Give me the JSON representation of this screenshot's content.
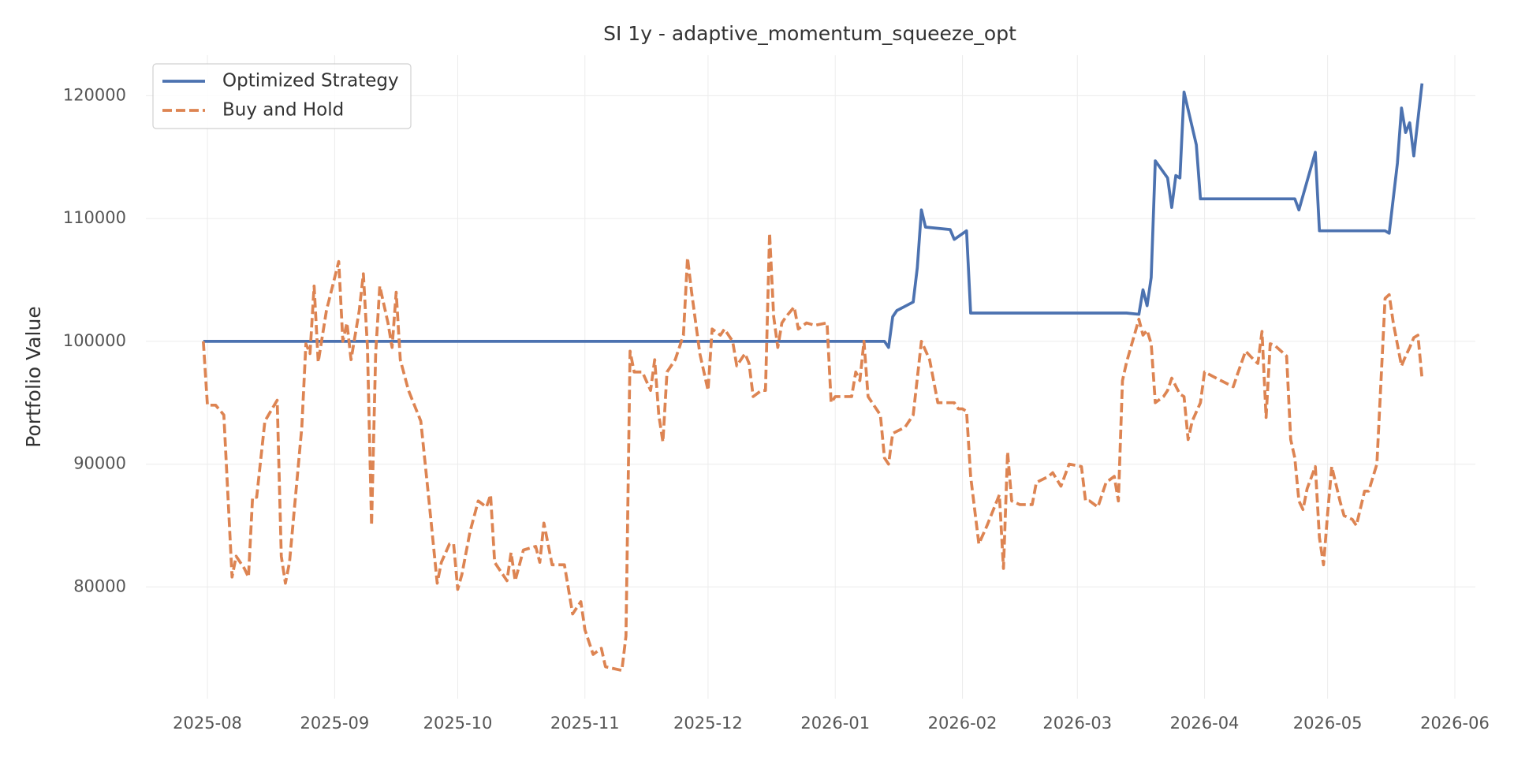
{
  "chart_data": {
    "type": "line",
    "title": "SI 1y - adaptive_momentum_squeeze_opt",
    "y_label": "Portfolio Value",
    "grid": true,
    "legend": "upper left",
    "xlim": [
      "2025-07-17",
      "2026-06-06"
    ],
    "xticks": [
      {
        "value": "2025-08-01",
        "label": "2025-08"
      },
      {
        "value": "2025-09-01",
        "label": "2025-09"
      },
      {
        "value": "2025-10-01",
        "label": "2025-10"
      },
      {
        "value": "2025-11-01",
        "label": "2025-11"
      },
      {
        "value": "2025-12-01",
        "label": "2025-12"
      },
      {
        "value": "2026-01-01",
        "label": "2026-01"
      },
      {
        "value": "2026-02-01",
        "label": "2026-02"
      },
      {
        "value": "2026-03-01",
        "label": "2026-03"
      },
      {
        "value": "2026-04-01",
        "label": "2026-04"
      },
      {
        "value": "2026-05-01",
        "label": "2026-05"
      },
      {
        "value": "2026-06-01",
        "label": "2026-06"
      }
    ],
    "ylim": [
      70900,
      123300
    ],
    "yticks": [
      80000,
      90000,
      100000,
      110000,
      120000
    ],
    "series": [
      {
        "name": "Optimized Strategy",
        "color": "#4c72b0",
        "dash": false,
        "x": [
          "2025-07-31",
          "2026-01-13",
          "2026-01-14",
          "2026-01-15",
          "2026-01-16",
          "2026-01-20",
          "2026-01-21",
          "2026-01-22",
          "2026-01-23",
          "2026-01-29",
          "2026-01-30",
          "2026-02-02",
          "2026-02-03",
          "2026-03-13",
          "2026-03-16",
          "2026-03-17",
          "2026-03-18",
          "2026-03-19",
          "2026-03-20",
          "2026-03-23",
          "2026-03-24",
          "2026-03-25",
          "2026-03-26",
          "2026-03-27",
          "2026-03-30",
          "2026-03-31",
          "2026-04-23",
          "2026-04-24",
          "2026-04-28",
          "2026-04-29",
          "2026-05-15",
          "2026-05-16",
          "2026-05-18",
          "2026-05-19",
          "2026-05-20",
          "2026-05-21",
          "2026-05-22",
          "2026-05-24"
        ],
        "values": [
          100000,
          100000,
          99500,
          102000,
          102500,
          103200,
          106000,
          110700,
          109300,
          109100,
          108300,
          109000,
          102300,
          102300,
          102200,
          104200,
          102900,
          105200,
          114700,
          113300,
          110900,
          113500,
          113300,
          120300,
          116000,
          111600,
          111600,
          110700,
          115400,
          109000,
          109000,
          108800,
          114500,
          119000,
          117000,
          117800,
          115100,
          121000
        ]
      },
      {
        "name": "Buy and Hold",
        "color": "#dd8452",
        "dash": true,
        "x": [
          "2025-07-31",
          "2025-08-01",
          "2025-08-03",
          "2025-08-05",
          "2025-08-07",
          "2025-08-08",
          "2025-08-10",
          "2025-08-11",
          "2025-08-12",
          "2025-08-13",
          "2025-08-15",
          "2025-08-18",
          "2025-08-19",
          "2025-08-20",
          "2025-08-21",
          "2025-08-24",
          "2025-08-25",
          "2025-08-26",
          "2025-08-27",
          "2025-08-28",
          "2025-08-30",
          "2025-09-02",
          "2025-09-03",
          "2025-09-04",
          "2025-09-05",
          "2025-09-07",
          "2025-09-08",
          "2025-09-09",
          "2025-09-10",
          "2025-09-11",
          "2025-09-12",
          "2025-09-14",
          "2025-09-15",
          "2025-09-16",
          "2025-09-17",
          "2025-09-19",
          "2025-09-22",
          "2025-09-24",
          "2025-09-26",
          "2025-09-27",
          "2025-09-29",
          "2025-09-30",
          "2025-10-01",
          "2025-10-02",
          "2025-10-04",
          "2025-10-06",
          "2025-10-08",
          "2025-10-09",
          "2025-10-10",
          "2025-10-13",
          "2025-10-14",
          "2025-10-15",
          "2025-10-17",
          "2025-10-20",
          "2025-10-21",
          "2025-10-22",
          "2025-10-24",
          "2025-10-27",
          "2025-10-29",
          "2025-10-31",
          "2025-11-01",
          "2025-11-03",
          "2025-11-05",
          "2025-11-06",
          "2025-11-10",
          "2025-11-11",
          "2025-11-12",
          "2025-11-13",
          "2025-11-15",
          "2025-11-17",
          "2025-11-18",
          "2025-11-19",
          "2025-11-20",
          "2025-11-21",
          "2025-11-23",
          "2025-11-24",
          "2025-11-25",
          "2025-11-26",
          "2025-11-27",
          "2025-11-29",
          "2025-12-01",
          "2025-12-02",
          "2025-12-04",
          "2025-12-05",
          "2025-12-07",
          "2025-12-08",
          "2025-12-10",
          "2025-12-11",
          "2025-12-12",
          "2025-12-14",
          "2025-12-15",
          "2025-12-16",
          "2025-12-17",
          "2025-12-18",
          "2025-12-19",
          "2025-12-20",
          "2025-12-22",
          "2025-12-23",
          "2025-12-25",
          "2025-12-27",
          "2025-12-30",
          "2025-12-31",
          "2026-01-01",
          "2026-01-05",
          "2026-01-06",
          "2026-01-07",
          "2026-01-08",
          "2026-01-09",
          "2026-01-12",
          "2026-01-13",
          "2026-01-14",
          "2026-01-15",
          "2026-01-18",
          "2026-01-20",
          "2026-01-22",
          "2026-01-24",
          "2026-01-26",
          "2026-01-30",
          "2026-01-31",
          "2026-02-01",
          "2026-02-02",
          "2026-02-03",
          "2026-02-05",
          "2026-02-07",
          "2026-02-10",
          "2026-02-11",
          "2026-02-12",
          "2026-02-13",
          "2026-02-15",
          "2026-02-18",
          "2026-02-19",
          "2026-02-22",
          "2026-02-23",
          "2026-02-25",
          "2026-02-27",
          "2026-03-02",
          "2026-03-03",
          "2026-03-04",
          "2026-03-06",
          "2026-03-08",
          "2026-03-10",
          "2026-03-11",
          "2026-03-12",
          "2026-03-13",
          "2026-03-16",
          "2026-03-17",
          "2026-03-18",
          "2026-03-19",
          "2026-03-20",
          "2026-03-22",
          "2026-03-23",
          "2026-03-24",
          "2026-03-26",
          "2026-03-27",
          "2026-03-28",
          "2026-03-29",
          "2026-03-31",
          "2026-04-01",
          "2026-04-05",
          "2026-04-08",
          "2026-04-09",
          "2026-04-11",
          "2026-04-13",
          "2026-04-14",
          "2026-04-15",
          "2026-04-16",
          "2026-04-17",
          "2026-04-18",
          "2026-04-21",
          "2026-04-22",
          "2026-04-23",
          "2026-04-24",
          "2026-04-25",
          "2026-04-26",
          "2026-04-28",
          "2026-04-29",
          "2026-04-30",
          "2026-05-01",
          "2026-05-02",
          "2026-05-04",
          "2026-05-05",
          "2026-05-07",
          "2026-05-08",
          "2026-05-10",
          "2026-05-11",
          "2026-05-13",
          "2026-05-15",
          "2026-05-16",
          "2026-05-17",
          "2026-05-19",
          "2026-05-20",
          "2026-05-21",
          "2026-05-22",
          "2026-05-23",
          "2026-05-24"
        ],
        "values": [
          100000,
          94800,
          94800,
          94000,
          80800,
          82500,
          81500,
          80800,
          87300,
          87300,
          93500,
          95200,
          82500,
          80300,
          82000,
          93000,
          99800,
          99000,
          104500,
          98300,
          102500,
          106500,
          100000,
          101500,
          98500,
          102500,
          105500,
          99500,
          85000,
          99000,
          104500,
          101500,
          99500,
          104000,
          98500,
          96000,
          93500,
          87000,
          80300,
          82000,
          83500,
          83500,
          79800,
          81000,
          84500,
          87000,
          86500,
          87500,
          82000,
          80500,
          82800,
          80500,
          83000,
          83300,
          82000,
          85200,
          81800,
          81800,
          77800,
          78800,
          76500,
          74500,
          75000,
          73500,
          73200,
          76000,
          99200,
          97500,
          97500,
          96000,
          98500,
          94000,
          91800,
          97500,
          98500,
          99500,
          100500,
          106800,
          104000,
          99000,
          96000,
          101000,
          100500,
          101000,
          100000,
          98000,
          99000,
          98200,
          95500,
          96000,
          96000,
          108800,
          102000,
          99500,
          101500,
          102000,
          102800,
          101000,
          101500,
          101300,
          101500,
          95000,
          95500,
          95500,
          97500,
          96800,
          100000,
          95500,
          94000,
          90500,
          90000,
          92500,
          93000,
          94000,
          100000,
          98500,
          95000,
          95000,
          94500,
          94500,
          94300,
          89000,
          83500,
          85000,
          87500,
          81500,
          91000,
          87000,
          86700,
          86700,
          88500,
          89000,
          89300,
          88200,
          90000,
          89800,
          87000,
          87000,
          86500,
          88500,
          89000,
          87000,
          96800,
          98300,
          101800,
          100500,
          100900,
          99800,
          95000,
          95500,
          96000,
          97000,
          95700,
          95500,
          92000,
          93500,
          95000,
          97500,
          96800,
          96300,
          97300,
          99200,
          98500,
          98200,
          100800,
          93800,
          99800,
          99700,
          98800,
          92000,
          90500,
          87000,
          86300,
          88000,
          89800,
          84000,
          81800,
          86000,
          89800,
          87000,
          85800,
          85500,
          85000,
          87800,
          87800,
          90000,
          103500,
          103800,
          101500,
          98000,
          98800,
          99500,
          100300,
          100500,
          97000
        ]
      }
    ]
  }
}
